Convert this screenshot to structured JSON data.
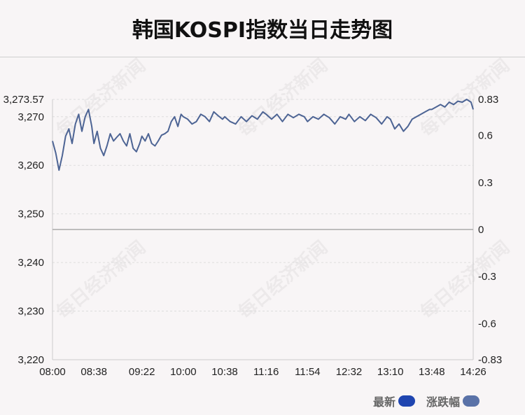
{
  "title": "韩国KOSPI指数当日走势图",
  "watermark": "每日经济新闻",
  "legend": {
    "latest": "最新",
    "change": "涨跌幅"
  },
  "colors": {
    "line": "#4d6494",
    "latest_swatch": "#1f45b0",
    "change_swatch": "#5a72a8",
    "baseline": "#aaaaaa",
    "grid": "#dddddd"
  },
  "chart_data": {
    "type": "line",
    "title": "韩国KOSPI指数当日走势图",
    "x_ticks": [
      "08:00",
      "08:38",
      "09:22",
      "10:00",
      "10:38",
      "11:16",
      "11:54",
      "12:32",
      "13:10",
      "13:48",
      "14:26"
    ],
    "y_left_ticks": [
      "3,220",
      "3,230",
      "3,240",
      "3,250",
      "3,260",
      "3,270",
      "3,273.57"
    ],
    "y_left_values": [
      3220,
      3230,
      3240,
      3250,
      3260,
      3270,
      3273.57
    ],
    "y_left_range": [
      3220,
      3273.57
    ],
    "y_right_ticks": [
      "-0.83",
      "-0.6",
      "-0.3",
      "0",
      "0.3",
      "0.6",
      "0.83"
    ],
    "y_right_values": [
      -0.83,
      -0.6,
      -0.3,
      0,
      0.3,
      0.6,
      0.83
    ],
    "y_right_range": [
      -0.83,
      0.83
    ],
    "baseline": 3246.8,
    "series": [
      {
        "name": "最新",
        "x": [
          "08:00",
          "08:03",
          "08:06",
          "08:09",
          "08:12",
          "08:15",
          "08:18",
          "08:21",
          "08:24",
          "08:27",
          "08:30",
          "08:33",
          "08:36",
          "08:38",
          "08:41",
          "08:44",
          "08:47",
          "08:50",
          "08:53",
          "08:56",
          "08:59",
          "09:02",
          "09:05",
          "09:08",
          "09:11",
          "09:14",
          "09:17",
          "09:20",
          "09:22",
          "09:25",
          "09:28",
          "09:31",
          "09:34",
          "09:37",
          "09:40",
          "09:43",
          "09:46",
          "09:49",
          "09:52",
          "09:55",
          "09:58",
          "10:00",
          "10:04",
          "10:08",
          "10:12",
          "10:16",
          "10:20",
          "10:24",
          "10:28",
          "10:32",
          "10:36",
          "10:38",
          "10:43",
          "10:48",
          "10:53",
          "10:58",
          "11:03",
          "11:08",
          "11:13",
          "11:16",
          "11:21",
          "11:26",
          "11:31",
          "11:36",
          "11:41",
          "11:46",
          "11:51",
          "11:54",
          "11:59",
          "12:04",
          "12:09",
          "12:14",
          "12:19",
          "12:24",
          "12:29",
          "12:32",
          "12:37",
          "12:42",
          "12:47",
          "12:52",
          "12:57",
          "13:02",
          "13:07",
          "13:10",
          "13:14",
          "13:18",
          "13:22",
          "13:26",
          "13:30",
          "13:34",
          "13:38",
          "13:42",
          "13:46",
          "13:48",
          "13:52",
          "13:56",
          "14:00",
          "14:04",
          "14:08",
          "14:12",
          "14:16",
          "14:20",
          "14:24",
          "14:26"
        ],
        "values": [
          3265.0,
          3262.5,
          3259.0,
          3262.0,
          3266.0,
          3267.5,
          3264.5,
          3268.5,
          3270.5,
          3267.0,
          3270.0,
          3271.5,
          3268.0,
          3264.5,
          3267.0,
          3263.5,
          3262.0,
          3264.0,
          3266.5,
          3265.0,
          3265.8,
          3266.5,
          3265.0,
          3264.0,
          3266.5,
          3263.5,
          3262.8,
          3264.5,
          3266.0,
          3265.0,
          3266.5,
          3264.5,
          3264.0,
          3265.0,
          3266.2,
          3266.5,
          3267.0,
          3269.0,
          3270.0,
          3268.0,
          3270.5,
          3270.0,
          3269.5,
          3268.5,
          3269.0,
          3270.5,
          3270.0,
          3269.0,
          3271.0,
          3270.2,
          3269.5,
          3270.0,
          3269.0,
          3268.5,
          3270.0,
          3269.0,
          3270.2,
          3269.5,
          3271.0,
          3270.5,
          3269.5,
          3270.5,
          3269.0,
          3270.5,
          3269.8,
          3270.5,
          3270.0,
          3269.0,
          3270.0,
          3269.5,
          3270.5,
          3269.8,
          3268.5,
          3270.0,
          3269.5,
          3270.5,
          3269.0,
          3270.0,
          3269.2,
          3270.5,
          3269.8,
          3268.5,
          3270.0,
          3269.5,
          3267.5,
          3268.5,
          3267.0,
          3268.0,
          3269.5,
          3270.0,
          3270.5,
          3271.0,
          3271.5,
          3271.5,
          3272.0,
          3272.5,
          3272.0,
          3273.0,
          3272.5,
          3273.2,
          3273.0,
          3273.57,
          3273.0,
          3271.5
        ]
      }
    ],
    "grid": true,
    "legend_position": "bottom-right"
  }
}
